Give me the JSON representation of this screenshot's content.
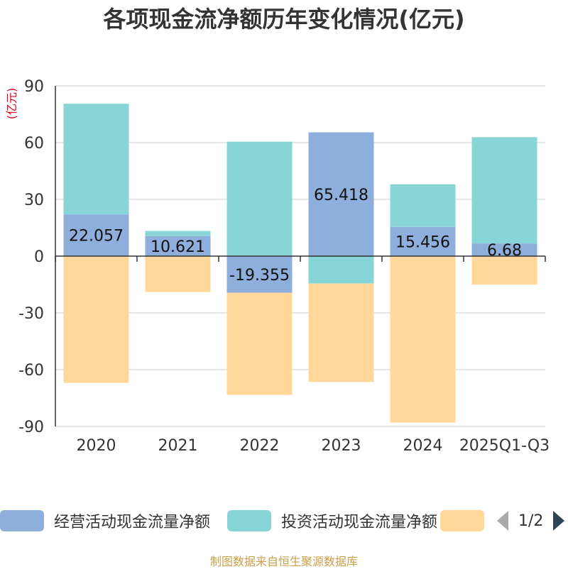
{
  "chart_data": {
    "type": "bar",
    "stacked": true,
    "title": "各项现金流净额历年变化情况(亿元)",
    "ylabel": "(亿元)",
    "xlabel": "",
    "categories": [
      "2020",
      "2021",
      "2022",
      "2023",
      "2024",
      "2025Q1-Q3"
    ],
    "ylim": [
      -90,
      90
    ],
    "yticks": [
      90,
      60,
      30,
      0,
      -30,
      -60,
      -90
    ],
    "grid": true,
    "series": [
      {
        "name": "经营活动现金流量净额",
        "color": "#8eaedb",
        "values": [
          22.057,
          10.621,
          -19.355,
          65.418,
          15.456,
          6.68
        ],
        "labels": [
          "22.057",
          "10.621",
          "-19.355",
          "65.418",
          "15.456",
          "6.68"
        ]
      },
      {
        "name": "投资活动现金流量净额",
        "color": "#88d5d8",
        "values": [
          58.5,
          2.7,
          60.5,
          -14.5,
          22.5,
          56.2
        ]
      },
      {
        "name": "",
        "color": "#ffd899",
        "values": [
          -67,
          -19,
          -54,
          -52,
          -88,
          -15
        ]
      }
    ]
  },
  "legend": {
    "items": [
      {
        "label": "经营活动现金流量净额",
        "color": "#8eaedb"
      },
      {
        "label": "投资活动现金流量净额",
        "color": "#88d5d8"
      },
      {
        "label": "",
        "color": "#ffd899"
      }
    ],
    "page": "1/2"
  },
  "source": "制图数据来自恒生聚源数据库"
}
